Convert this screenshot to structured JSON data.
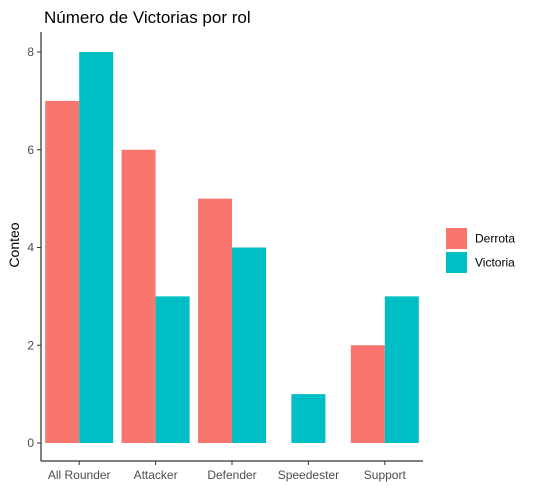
{
  "chart_data": {
    "type": "bar",
    "title": "Número de Victorias por rol",
    "xlabel": "",
    "ylabel": "Conteo",
    "categories": [
      "All Rounder",
      "Attacker",
      "Defender",
      "Speedester",
      "Support"
    ],
    "series": [
      {
        "name": "Derrota",
        "color": "#F8766D",
        "values": [
          7,
          6,
          5,
          null,
          2
        ]
      },
      {
        "name": "Victoria",
        "color": "#00BFC4",
        "values": [
          8,
          3,
          4,
          1,
          3
        ]
      }
    ],
    "ylim": [
      0,
      8
    ],
    "yticks": [
      0,
      2,
      4,
      6,
      8
    ],
    "grid": false,
    "legend_position": "right"
  }
}
